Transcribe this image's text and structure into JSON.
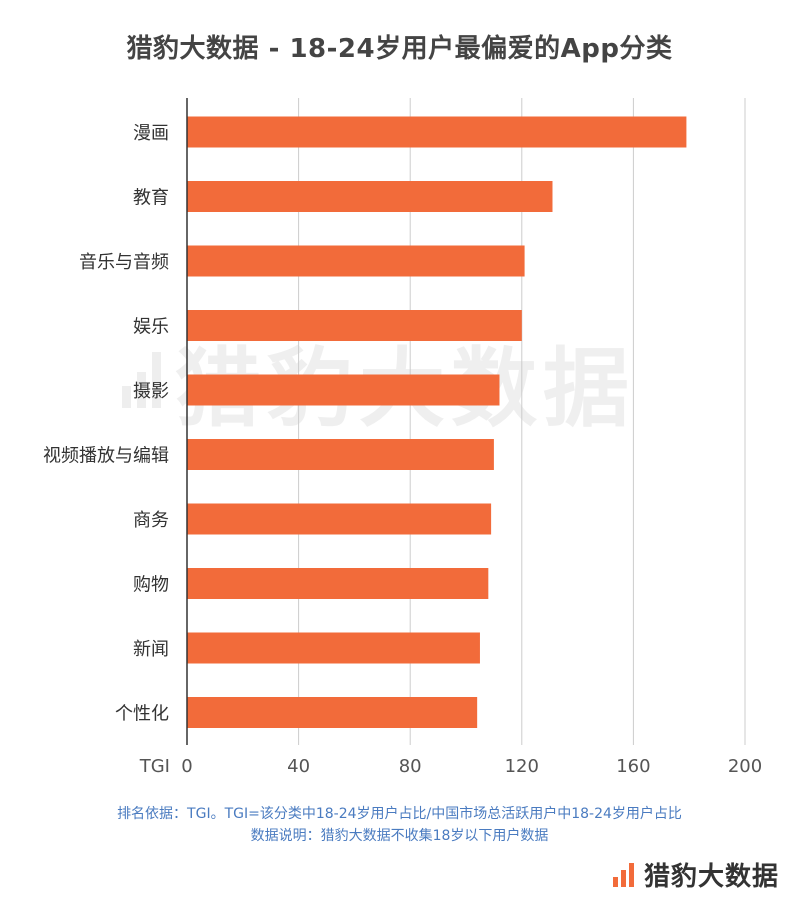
{
  "title": "猎豹大数据 - 18-24岁用户最偏爱的App分类",
  "watermark": "猎豹大数据",
  "footnotes": {
    "line1": "排名依据：TGI。TGI=该分类中18-24岁用户占比/中国市场总活跃用户中18-24岁用户占比",
    "line2": "数据说明：猎豹大数据不收集18岁以下用户数据"
  },
  "brand": {
    "name": "猎豹大数据"
  },
  "colors": {
    "bar": "#f26b3a",
    "grid": "#cccccc",
    "axis": "#333333",
    "footnote": "#4a7bc0"
  },
  "chart_data": {
    "type": "bar",
    "orientation": "horizontal",
    "categories": [
      "漫画",
      "教育",
      "音乐与音频",
      "娱乐",
      "摄影",
      "视频播放与编辑",
      "商务",
      "购物",
      "新闻",
      "个性化"
    ],
    "values": [
      179,
      131,
      121,
      120,
      112,
      110,
      109,
      108,
      105,
      104
    ],
    "xaxis_label": "TGI",
    "xticks": [
      "0",
      "40",
      "80",
      "120",
      "160",
      "200"
    ],
    "xlim": [
      0,
      200
    ],
    "grid": true
  }
}
